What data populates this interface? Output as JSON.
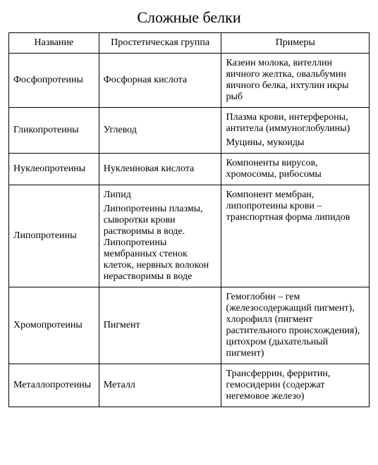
{
  "title": "Сложные белки",
  "columns": [
    "Название",
    "Простетическая группа",
    "Примеры"
  ],
  "rows": [
    {
      "name": "Фосфопротеины",
      "group": "Фосфорная кислота",
      "examples": "Казеин молока, вителлин яичного желтка, овальбумин яичного белка, ихтулин икры рыб"
    },
    {
      "name": "Гликопротеины",
      "group": "Углевод",
      "examples_line1": "Плазма крови, интерфероны, антитела (иммуноглобулины)",
      "examples_line2": "Муцины, мукоиды"
    },
    {
      "name": "Нуклеопротеины",
      "group": "Нуклеиновая кислота",
      "examples": "Компоненты вирусов, хромосомы, рибосомы"
    },
    {
      "name": "Липопротеины",
      "group_line1": "Липид",
      "group_line2": "Липопротеины плазмы, сыворотки крови растворимы в воде. Липопротеины мембранных стенок клеток, нервных волокон нерастворимы в воде",
      "examples": "Компонент мембран, липопротеины крови – транспортная форма липидов"
    },
    {
      "name": "Хромопротеины",
      "group": "Пигмент",
      "examples": "Гемоглобин – гем (железосодержащий пигмент), хлорофилл (пигмент растительного происхождения), цитохром (дыхательный пигмент)"
    },
    {
      "name": "Металлопротеины",
      "group": "Металл",
      "examples": "Трансферрин, ферритин, гемосидерин (содержат негемовое железо)"
    }
  ]
}
